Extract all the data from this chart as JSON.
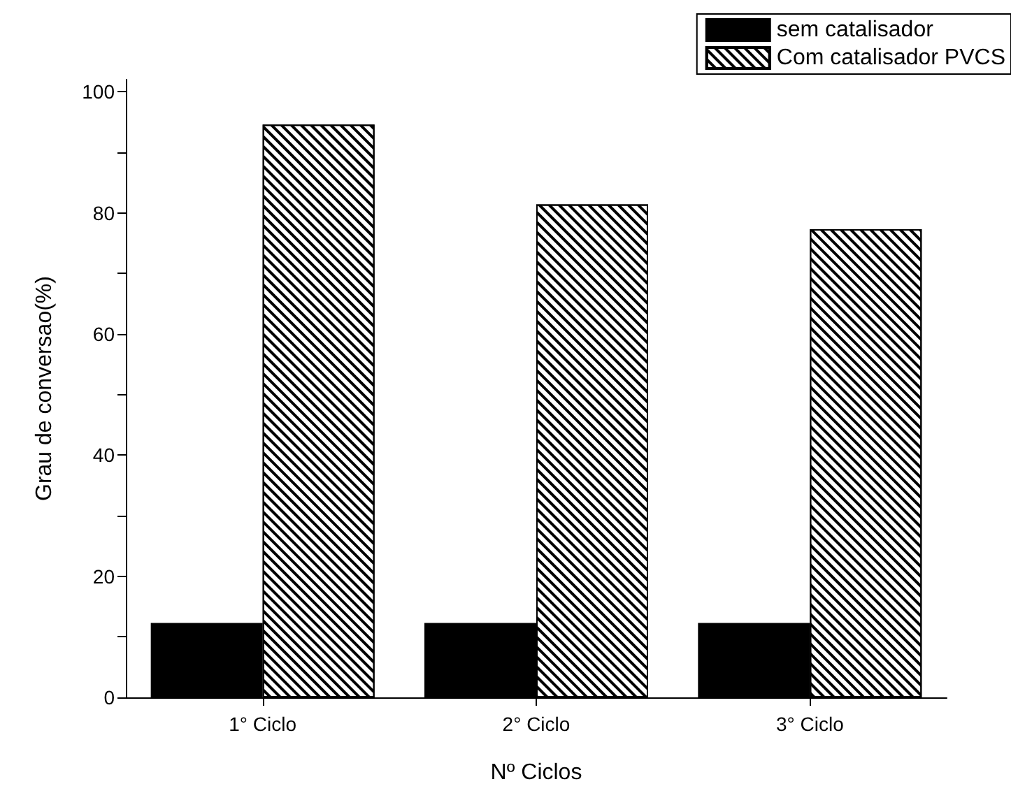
{
  "chart_data": {
    "type": "bar",
    "xlabel": "Nº Ciclos",
    "ylabel": "Grau de conversao(%)",
    "categories": [
      "1° Ciclo",
      "2° Ciclo",
      "3° Ciclo"
    ],
    "series": [
      {
        "name": "sem catalisador",
        "color": "#000000",
        "values": [
          12.3,
          12.3,
          12.3
        ]
      },
      {
        "name": "Com catalisador PVCS",
        "color": "#ffffff",
        "values": [
          94.6,
          81.4,
          77.3
        ]
      }
    ],
    "ylim": [
      0,
      102
    ],
    "yticks": [
      0,
      {
        "value": 10,
        "label": null
      },
      20,
      {
        "value": 30,
        "label": null
      },
      40,
      {
        "value": 50,
        "label": null
      },
      60,
      {
        "value": 70,
        "label": null
      },
      80,
      {
        "value": 90,
        "label": null
      },
      100
    ],
    "legend": "top right",
    "grid": false
  }
}
